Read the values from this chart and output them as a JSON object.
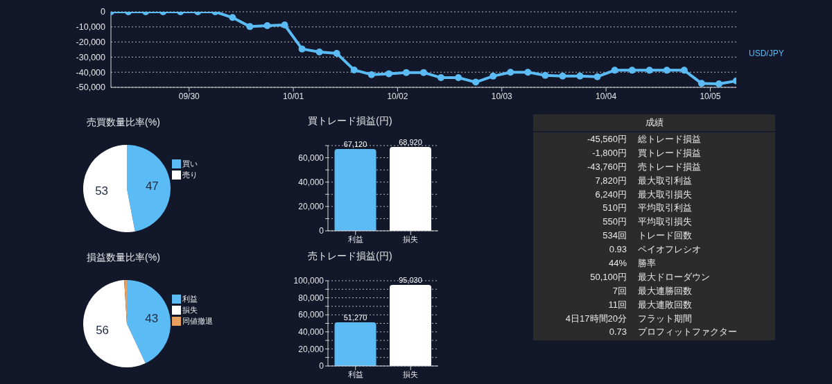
{
  "chart_data": [
    {
      "type": "line",
      "x": [
        "--09-29T06:00",
        "--09-29T10:00",
        "--09-29T14:00",
        "--09-29T18:00",
        "--09-29T22:00",
        "--09-30T02:00",
        "--09-30T06:00",
        "--09-30T10:00",
        "--09-30T14:00",
        "--09-30T18:00",
        "--09-30T22:00",
        "--10-01T02:00",
        "--10-01T06:00",
        "--10-01T10:00",
        "--10-01T14:00",
        "--10-01T18:00",
        "--10-01T22:00",
        "--10-02T02:00",
        "--10-02T06:00",
        "--10-02T10:00",
        "--10-02T14:00",
        "--10-02T18:00",
        "--10-02T22:00",
        "--10-03T02:00",
        "--10-03T06:00",
        "--10-03T10:00",
        "--10-03T14:00",
        "--10-03T18:00",
        "--10-03T22:00",
        "--10-04T02:00",
        "--10-04T06:00",
        "--10-04T10:00",
        "--10-04T14:00",
        "--10-04T18:00",
        "--10-04T22:00",
        "--10-05T02:00",
        "--10-05T06:00"
      ],
      "series": [
        {
          "name": "USD/JPY",
          "color": "#5bbcf5",
          "values": [
            0,
            0,
            0,
            0,
            0,
            0,
            0,
            -3800,
            -9800,
            -9200,
            -8700,
            -24600,
            -26600,
            -27500,
            -38500,
            -41600,
            -41000,
            -40200,
            -40200,
            -43600,
            -43600,
            -46600,
            -42600,
            -40000,
            -40000,
            -42100,
            -42500,
            -42500,
            -43000,
            -38700,
            -38700,
            -38700,
            -38700,
            -38700,
            -47400,
            -47700,
            -45700
          ]
        }
      ],
      "xlim": [
        "--09-29T06:00",
        "--10-05T06:00"
      ],
      "xticks": [
        {
          "value": "--09-30T00:00",
          "label": "09/30"
        },
        {
          "value": "--10-01T00:00",
          "label": "10/01"
        },
        {
          "value": "--10-02T00:00",
          "label": "10/02"
        },
        {
          "value": "--10-03T00:00",
          "label": "10/03"
        },
        {
          "value": "--10-04T00:00",
          "label": "10/04"
        },
        {
          "value": "--10-05T00:00",
          "label": "10/05"
        }
      ],
      "ylim": [
        -50000,
        0
      ],
      "yticks": [
        {
          "value": -50000,
          "label": "-50,000"
        },
        {
          "value": -40000,
          "label": "-40,000"
        },
        {
          "value": -30000,
          "label": "-30,000"
        },
        {
          "value": -20000,
          "label": "-20,000"
        },
        {
          "value": -10000,
          "label": "-10,000"
        },
        {
          "value": 0,
          "label": "0"
        }
      ],
      "grid": "y",
      "legend": "right",
      "marker": "circle",
      "line_style": "solid"
    },
    {
      "type": "pie",
      "title": "売買数量比率(%)",
      "categories": [
        "買い",
        "売り"
      ],
      "values": [
        47,
        53
      ],
      "colors": [
        "#5bbcf5",
        "#ffffff"
      ],
      "data_labels": true,
      "legend": "right"
    },
    {
      "type": "bar",
      "title": "買トレード損益(円)",
      "categories": [
        "利益",
        "損失"
      ],
      "values": [
        67120,
        68920
      ],
      "colors": [
        "#5bbcf5",
        "#ffffff"
      ],
      "value_labels": [
        "67,120",
        "68,920"
      ],
      "ylim": [
        0,
        70000
      ],
      "yticks": [
        {
          "value": 0,
          "label": "0"
        },
        {
          "value": 10000,
          "label": null
        },
        {
          "value": 20000,
          "label": "20,000"
        },
        {
          "value": 30000,
          "label": null
        },
        {
          "value": 40000,
          "label": "40,000"
        },
        {
          "value": 50000,
          "label": null
        },
        {
          "value": 60000,
          "label": "60,000"
        },
        {
          "value": 70000,
          "label": null
        }
      ],
      "grid": "y"
    },
    {
      "type": "other",
      "title": "成績",
      "annotations": [
        "-45,560円",
        "総トレード損益",
        "-1,800円",
        "買トレード損益",
        "-43,760円",
        "売トレード損益",
        "7,820円",
        "最大取引利益",
        "6,240円",
        "最大取引損失",
        "510円",
        "平均取引利益",
        "550円",
        "平均取引損失",
        "534回",
        "トレード回数",
        "0.93",
        "ペイオフレシオ",
        "44%",
        "勝率",
        "50,100円",
        "最大ドローダウン",
        "7回",
        "最大連勝回数",
        "11回",
        "最大連敗回数",
        "4日17時間20分",
        "フラット期間",
        "0.73",
        "プロフィットファクター"
      ]
    },
    {
      "type": "pie",
      "title": "損益数量比率(%)",
      "categories": [
        "利益",
        "損失",
        "同値撤退"
      ],
      "values": [
        43,
        56,
        1
      ],
      "colors": [
        "#5bbcf5",
        "#ffffff",
        "#e8a060"
      ],
      "value_labels": [
        "43",
        "56",
        null
      ],
      "legend": "right"
    },
    {
      "type": "bar",
      "title": "売トレード損益(円)",
      "categories": [
        "利益",
        "損失"
      ],
      "values": [
        51270,
        95030
      ],
      "colors": [
        "#5bbcf5",
        "#ffffff"
      ],
      "value_labels": [
        "51,270",
        "95,030"
      ],
      "ylim": [
        0,
        100000
      ],
      "yticks": [
        {
          "value": 0,
          "label": "0"
        },
        {
          "value": 10000,
          "label": null
        },
        {
          "value": 20000,
          "label": "20,000"
        },
        {
          "value": 30000,
          "label": null
        },
        {
          "value": 40000,
          "label": "40,000"
        },
        {
          "value": 50000,
          "label": null
        },
        {
          "value": 60000,
          "label": "60,000"
        },
        {
          "value": 70000,
          "label": null
        },
        {
          "value": 80000,
          "label": "80,000"
        },
        {
          "value": 90000,
          "label": null
        },
        {
          "value": 100000,
          "label": "100,000"
        }
      ],
      "grid": "y"
    }
  ]
}
